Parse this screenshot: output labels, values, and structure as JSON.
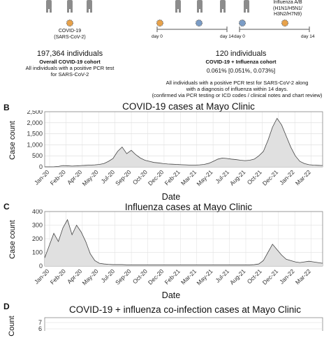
{
  "panel_a": {
    "left_legend": [
      "COVID-19",
      "(SARS-CoV-2)"
    ],
    "right_legend": [
      "Influenza A/B",
      "(H1N1/H5N1/",
      "H3N2/H7N9)"
    ],
    "timeline_day0": "day 0",
    "timeline_day14": "day 14",
    "left_count": "197,364 individuals",
    "left_cohort": "Overall COVID-19 cohort",
    "left_desc": [
      "All individuals with a positive PCR test",
      "for SARS-CoV-2"
    ],
    "right_count": "120 individuals",
    "right_cohort": "COVID-19 + Influenza cohort",
    "right_pct": "0.061% [0.051%, 0.073%]",
    "right_desc": [
      "All individuals with a positive PCR test for SARS-CoV-2 along",
      "with a diagnosis of influenza within 14 days.",
      "(confirmed via PCR testing or ICD codes / clinical notes and chart review)"
    ],
    "colors": {
      "covid": "#e8a24a",
      "flu": "#7a9cc6",
      "person": "#8c8c8c"
    }
  },
  "panel_labels": {
    "b": "B",
    "c": "C",
    "d": "D"
  },
  "chart_data": [
    {
      "type": "area",
      "title": "COVID-19 cases at Mayo Clinic",
      "xlabel": "Date",
      "ylabel": "Case count",
      "ylim": [
        0,
        2500
      ],
      "yticks": [
        "0",
        "500",
        "1,000",
        "1,500",
        "2,000",
        "2,500"
      ],
      "xticks": [
        "Jan-20",
        "Feb-20",
        "Apr-20",
        "May-20",
        "Jul-20",
        "Sep-20",
        "Oct-20",
        "Dec-20",
        "Feb-21",
        "Mar-21",
        "May-21",
        "Jul-21",
        "Aug-21",
        "Oct-21",
        "Dec-21",
        "Jan-22",
        "Mar-22"
      ],
      "series": [
        {
          "values": [
            0,
            0,
            5,
            20,
            60,
            50,
            35,
            45,
            60,
            70,
            80,
            90,
            110,
            150,
            250,
            380,
            700,
            900,
            600,
            750,
            550,
            400,
            300,
            250,
            200,
            180,
            150,
            130,
            120,
            110,
            100,
            90,
            80,
            80,
            90,
            110,
            160,
            250,
            350,
            400,
            380,
            350,
            330,
            300,
            280,
            300,
            350,
            500,
            700,
            1200,
            1800,
            2200,
            1900,
            1400,
            900,
            500,
            250,
            150,
            100,
            80,
            70,
            60
          ]
        }
      ],
      "fill": "#e0e0e0",
      "grid": true
    },
    {
      "type": "area",
      "title": "Influenza cases at Mayo Clinic",
      "xlabel": "Date",
      "ylabel": "Case count",
      "ylim": [
        0,
        400
      ],
      "yticks": [
        "0",
        "100",
        "200",
        "300",
        "400"
      ],
      "xticks": [
        "Jan-20",
        "Feb-20",
        "Apr-20",
        "May-20",
        "Jul-20",
        "Sep-20",
        "Oct-20",
        "Dec-20",
        "Feb-21",
        "Mar-21",
        "May-21",
        "Jul-21",
        "Aug-21",
        "Oct-21",
        "Dec-21",
        "Jan-22",
        "Mar-22"
      ],
      "series": [
        {
          "values": [
            60,
            150,
            240,
            180,
            280,
            340,
            230,
            300,
            250,
            180,
            90,
            40,
            20,
            15,
            12,
            10,
            10,
            10,
            8,
            8,
            8,
            8,
            8,
            8,
            8,
            8,
            8,
            8,
            8,
            8,
            8,
            8,
            8,
            8,
            8,
            8,
            8,
            8,
            8,
            8,
            8,
            8,
            8,
            8,
            8,
            8,
            10,
            15,
            40,
            100,
            160,
            120,
            80,
            50,
            40,
            30,
            25,
            30,
            35,
            30,
            25,
            20
          ]
        }
      ],
      "fill": "#e0e0e0",
      "grid": true
    },
    {
      "type": "bar",
      "title": "COVID-19 + influenza co-infection cases at Mayo Clinic",
      "ylabel": "Count",
      "yticks": [
        "7",
        "6"
      ]
    }
  ]
}
